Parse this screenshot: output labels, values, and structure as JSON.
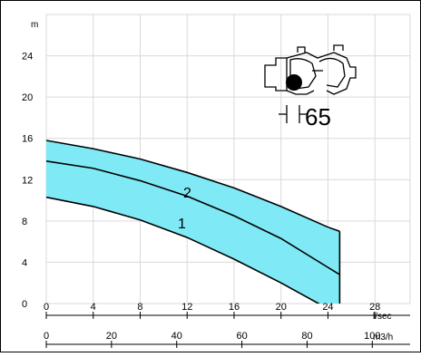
{
  "chart_data": {
    "type": "area",
    "y_unit_label": "m",
    "x_unit_label_primary": "l/sec",
    "x_unit_label_secondary": "m3/h",
    "y_ticks": [
      0,
      4,
      8,
      12,
      16,
      20,
      24
    ],
    "x_ticks_primary": [
      0,
      4,
      8,
      12,
      16,
      20,
      24,
      28
    ],
    "x_ticks_secondary": [
      0,
      20,
      40,
      60,
      80,
      100
    ],
    "ylim": [
      0,
      28
    ],
    "xlim": [
      0,
      31
    ],
    "grid": true,
    "series": [
      {
        "name": "1",
        "x": [
          0,
          4,
          8,
          12,
          16,
          20,
          24,
          25
        ],
        "values": [
          10.3,
          9.4,
          8.1,
          6.4,
          4.3,
          2.0,
          -0.5,
          -1.0
        ]
      },
      {
        "name": "2",
        "x": [
          0,
          4,
          8,
          12,
          16,
          20,
          24,
          25
        ],
        "values": [
          13.8,
          13.1,
          11.9,
          10.4,
          8.5,
          6.3,
          3.5,
          2.8
        ]
      },
      {
        "name": "",
        "x": [
          0,
          4,
          8,
          12,
          16,
          20,
          24,
          25
        ],
        "values": [
          15.8,
          15.0,
          14.0,
          12.7,
          11.2,
          9.4,
          7.4,
          7.0
        ]
      }
    ],
    "band_color": "#7fe9f5",
    "band_edge_color": "#b5f2f9",
    "line_color": "#000000",
    "grid_color": "#d9d9d9",
    "annotation": "65",
    "diagram_icon": "pump-cross-section-icon"
  }
}
